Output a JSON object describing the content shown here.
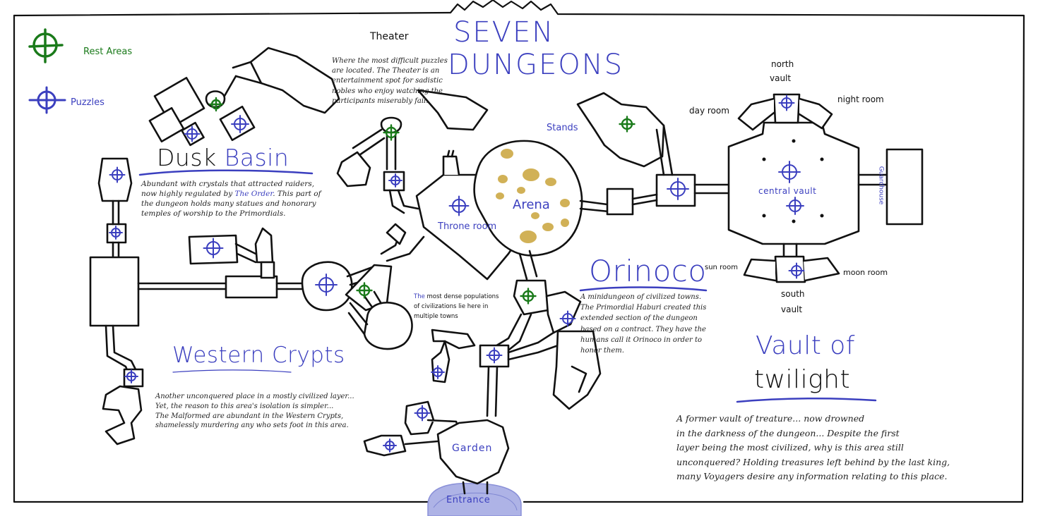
{
  "title": {
    "line1": "SEVEN",
    "line2": "DUNGEONS"
  },
  "legend": {
    "rest_areas": "Rest Areas",
    "puzzles": "Puzzles"
  },
  "colors": {
    "rest": "#1a7a1a",
    "puzzle": "#3b3fbf",
    "ink": "#111111",
    "arena_spots": "#c9a43a",
    "entrance_fill": "#8a90d8"
  },
  "regions": {
    "dusk_basin": {
      "title_a": "Dusk",
      "title_b": "Basin",
      "desc_1": "Abundant with crystals that attracted raiders,",
      "desc_2a": "now highly regulated by ",
      "desc_2b": "The Order",
      "desc_2c": ". This part of",
      "desc_3": "the dungeon holds many statues and honorary",
      "desc_4": "temples of worship to the Primordials."
    },
    "theater": {
      "title": "Theater",
      "desc_1": "Where the most difficult puzzles",
      "desc_2": "are located. The Theater is an",
      "desc_3": "entertainment spot for sadistic",
      "desc_4": "nobles who enjoy watching the",
      "desc_5": "participants miserably fail."
    },
    "western_crypts": {
      "title": "Western Crypts",
      "desc_1": "Another unconquered place in a mostly civilized layer...",
      "desc_2": "Yet, the reason to this area's isolation is simpler...",
      "desc_3": "The Malformed are abundant in the Western Crypts,",
      "desc_4": "shamelessly murdering any who sets foot in this area."
    },
    "orinoco": {
      "title": "Orinoco",
      "desc_1": "A minidungeon of civilized towns.",
      "desc_2": "The Primordial Haburi created this",
      "desc_3": "extended section of the dungeon",
      "desc_4": "based on a contract. They have the",
      "desc_5": "humans call it Orinoco in order to",
      "desc_6": "honor them."
    },
    "vault": {
      "title_a": "Vault of",
      "title_b": "twilight",
      "desc_1": "A former vault of treature... now drowned",
      "desc_2": "in the darkness of the dungeon... Despite the first",
      "desc_3": "layer being the most civilized, why is this area still",
      "desc_4": "unconquered? Holding treasures left behind by the last king,",
      "desc_5": "many Voyagers desire any information relating to this place."
    }
  },
  "rooms": {
    "arena": "Arena",
    "throne_room": "Throne room",
    "stands": "Stands",
    "garden": "Garden",
    "entrance": "Entrance",
    "central_vault": "central vault",
    "north_vault_1": "north",
    "north_vault_2": "vault",
    "south_vault_1": "south",
    "south_vault_2": "vault",
    "day_room": "day room",
    "night_room": "night room",
    "sun_room": "sun room",
    "moon_room": "moon room",
    "guardhouse": "Guardhouse"
  },
  "notes": {
    "towns_a": "The",
    "towns_b": " most dense populations",
    "towns_2": "of civilizations lie here in",
    "towns_3": "multiple towns"
  }
}
